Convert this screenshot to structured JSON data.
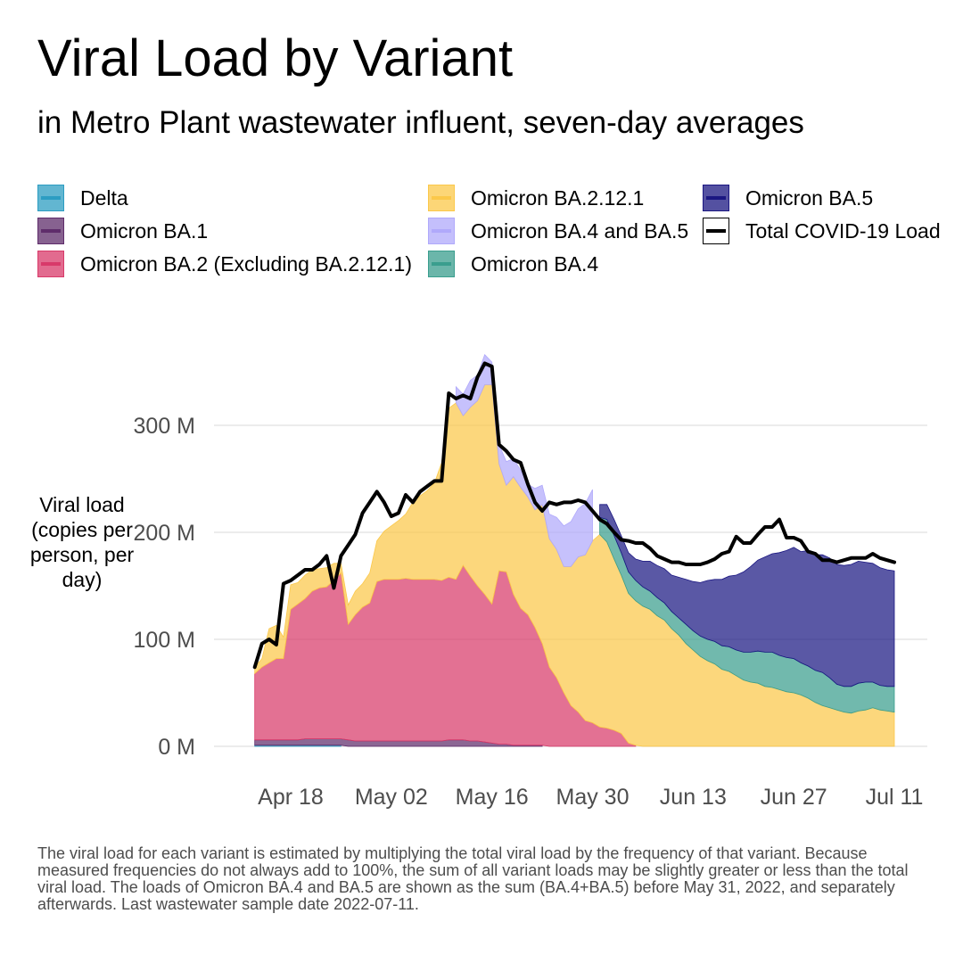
{
  "title": "Viral Load by Variant",
  "subtitle": "in Metro Plant wastewater influent, seven-day averages",
  "footnote": "The viral load for each variant is estimated by multiplying the total viral load by the frequency of that variant. Because measured frequencies do not always add to 100%, the sum of all variant loads may be slightly greater or less than the total viral load. The loads of Omicron BA.4 and BA.5 are shown as the sum (BA.4+BA.5) before May 31, 2022, and separately afterwards. Last wastewater sample date 2022-07-11.",
  "legend": [
    {
      "label": "Delta",
      "color": "#2d9dc2",
      "kind": "area"
    },
    {
      "label": "Omicron BA.1",
      "color": "#5f2d6b",
      "kind": "area"
    },
    {
      "label": "Omicron BA.2 (Excluding BA.2.12.1)",
      "color": "#d83a6a",
      "kind": "area"
    },
    {
      "label": "Omicron BA.2.12.1",
      "color": "#fbc84a",
      "kind": "area"
    },
    {
      "label": "Omicron BA.4 and BA.5",
      "color": "#b0a9fb",
      "kind": "area"
    },
    {
      "label": "Omicron BA.4",
      "color": "#3a9e8e",
      "kind": "area"
    },
    {
      "label": "Omicron BA.5",
      "color": "#1b1782",
      "kind": "area"
    },
    {
      "label": "Total COVID-19 Load",
      "color": "#000000",
      "kind": "line"
    }
  ],
  "chart_data": {
    "type": "area",
    "stacked": true,
    "title": "Viral Load by Variant",
    "subtitle": "in Metro Plant wastewater influent, seven-day averages",
    "ylabel": "Viral load (copies per person, per day)",
    "xlim": [
      "2022-04-13",
      "2022-07-13"
    ],
    "ylim": [
      0,
      360
    ],
    "y_unit": "M",
    "x_ticks": [
      {
        "date": "2022-04-18",
        "label": "Apr 18"
      },
      {
        "date": "2022-05-02",
        "label": "May 02"
      },
      {
        "date": "2022-05-16",
        "label": "May 16"
      },
      {
        "date": "2022-05-30",
        "label": "May 30"
      },
      {
        "date": "2022-06-13",
        "label": "Jun 13"
      },
      {
        "date": "2022-06-27",
        "label": "Jun 27"
      },
      {
        "date": "2022-07-11",
        "label": "Jul 11"
      }
    ],
    "y_ticks": [
      {
        "value": 0,
        "label": "0 M"
      },
      {
        "value": 100,
        "label": "100 M"
      },
      {
        "value": 200,
        "label": "200 M"
      },
      {
        "value": 300,
        "label": "300 M"
      }
    ],
    "grid": true,
    "legend_position": "top",
    "x": [
      "2022-04-13",
      "2022-04-14",
      "2022-04-15",
      "2022-04-16",
      "2022-04-17",
      "2022-04-18",
      "2022-04-19",
      "2022-04-20",
      "2022-04-21",
      "2022-04-22",
      "2022-04-23",
      "2022-04-24",
      "2022-04-25",
      "2022-04-26",
      "2022-04-27",
      "2022-04-28",
      "2022-04-29",
      "2022-04-30",
      "2022-05-01",
      "2022-05-02",
      "2022-05-03",
      "2022-05-04",
      "2022-05-05",
      "2022-05-06",
      "2022-05-07",
      "2022-05-08",
      "2022-05-09",
      "2022-05-10",
      "2022-05-11",
      "2022-05-12",
      "2022-05-13",
      "2022-05-14",
      "2022-05-15",
      "2022-05-16",
      "2022-05-17",
      "2022-05-18",
      "2022-05-19",
      "2022-05-20",
      "2022-05-21",
      "2022-05-22",
      "2022-05-23",
      "2022-05-24",
      "2022-05-25",
      "2022-05-26",
      "2022-05-27",
      "2022-05-28",
      "2022-05-29",
      "2022-05-30",
      "2022-05-31",
      "2022-06-01",
      "2022-06-02",
      "2022-06-03",
      "2022-06-04",
      "2022-06-05",
      "2022-06-06",
      "2022-06-07",
      "2022-06-08",
      "2022-06-09",
      "2022-06-10",
      "2022-06-11",
      "2022-06-12",
      "2022-06-13",
      "2022-06-14",
      "2022-06-15",
      "2022-06-16",
      "2022-06-17",
      "2022-06-18",
      "2022-06-19",
      "2022-06-20",
      "2022-06-21",
      "2022-06-22",
      "2022-06-23",
      "2022-06-24",
      "2022-06-25",
      "2022-06-26",
      "2022-06-27",
      "2022-06-28",
      "2022-06-29",
      "2022-06-30",
      "2022-07-01",
      "2022-07-02",
      "2022-07-03",
      "2022-07-04",
      "2022-07-05",
      "2022-07-06",
      "2022-07-07",
      "2022-07-08",
      "2022-07-09",
      "2022-07-10",
      "2022-07-11"
    ],
    "series": [
      {
        "name": "Delta",
        "color": "#2d9dc2",
        "values": [
          1,
          1,
          1,
          1,
          1,
          1,
          1,
          1,
          1,
          1,
          1,
          1,
          1,
          0,
          0,
          0,
          0,
          0,
          0,
          0,
          0,
          0,
          0,
          0,
          0,
          0,
          0,
          0,
          0,
          0,
          0,
          0,
          0,
          0,
          0,
          0,
          0,
          0,
          0,
          0,
          0,
          0,
          0,
          0,
          0,
          0,
          0,
          0,
          0,
          0,
          0,
          0,
          0,
          0,
          0,
          0,
          0,
          0,
          0,
          0,
          0,
          0,
          0,
          0,
          0,
          0,
          0,
          0,
          0,
          0,
          0,
          0,
          0,
          0,
          0,
          0,
          0,
          0,
          0,
          0,
          0,
          0,
          0,
          0,
          0,
          0,
          0,
          0,
          0,
          0
        ]
      },
      {
        "name": "Omicron BA.1",
        "color": "#5f2d6b",
        "values": [
          5,
          5,
          5,
          5,
          5,
          5,
          5,
          6,
          6,
          6,
          6,
          6,
          6,
          6,
          5,
          5,
          5,
          5,
          5,
          5,
          5,
          5,
          5,
          5,
          5,
          5,
          5,
          6,
          6,
          6,
          5,
          5,
          4,
          3,
          2,
          2,
          1,
          1,
          1,
          1,
          1,
          0,
          0,
          0,
          0,
          0,
          0,
          0,
          0,
          0,
          0,
          0,
          0,
          0,
          0,
          0,
          0,
          0,
          0,
          0,
          0,
          0,
          0,
          0,
          0,
          0,
          0,
          0,
          0,
          0,
          0,
          0,
          0,
          0,
          0,
          0,
          0,
          0,
          0,
          0,
          0,
          0,
          0,
          0,
          0,
          0,
          0,
          0,
          0,
          0
        ]
      },
      {
        "name": "Omicron BA.2 (Excluding BA.2.12.1)",
        "color": "#d83a6a",
        "values": [
          62,
          68,
          72,
          76,
          76,
          122,
          127,
          131,
          138,
          141,
          142,
          148,
          155,
          108,
          118,
          125,
          129,
          149,
          151,
          151,
          151,
          152,
          151,
          151,
          151,
          151,
          150,
          152,
          150,
          163,
          154,
          145,
          138,
          130,
          162,
          161,
          141,
          128,
          122,
          110,
          95,
          74,
          64,
          50,
          38,
          32,
          24,
          22,
          18,
          17,
          15,
          12,
          3,
          1,
          0,
          0,
          0,
          0,
          0,
          0,
          0,
          0,
          0,
          0,
          0,
          0,
          0,
          0,
          0,
          0,
          0,
          0,
          0,
          0,
          0,
          0,
          0,
          0,
          0,
          0,
          0,
          0,
          0,
          0,
          0,
          0,
          0,
          0,
          0,
          0
        ]
      },
      {
        "name": "Omicron BA.2.12.1",
        "color": "#fbc84a",
        "values": [
          6,
          8,
          32,
          31,
          20,
          23,
          20,
          22,
          20,
          18,
          18,
          16,
          9,
          18,
          22,
          22,
          28,
          38,
          45,
          50,
          55,
          60,
          72,
          78,
          83,
          90,
          110,
          158,
          165,
          140,
          158,
          173,
          196,
          205,
          100,
          81,
          110,
          113,
          110,
          110,
          130,
          120,
          120,
          118,
          130,
          145,
          155,
          170,
          180,
          174,
          160,
          148,
          140,
          135,
          131,
          128,
          122,
          118,
          110,
          104,
          96,
          90,
          84,
          80,
          77,
          72,
          70,
          66,
          62,
          60,
          59,
          56,
          55,
          53,
          51,
          50,
          48,
          45,
          41,
          38,
          36,
          34,
          32,
          31,
          33,
          34,
          36,
          34,
          33,
          32
        ]
      },
      {
        "name": "Omicron BA.4 and BA.5",
        "color": "#b0a9fb",
        "values": [
          0,
          0,
          0,
          0,
          0,
          0,
          0,
          0,
          0,
          0,
          0,
          0,
          0,
          0,
          0,
          0,
          0,
          0,
          0,
          0,
          0,
          0,
          0,
          0,
          0,
          0,
          0,
          0,
          15,
          20,
          25,
          24,
          28,
          21,
          18,
          22,
          17,
          16,
          12,
          20,
          18,
          23,
          30,
          38,
          42,
          45,
          48,
          48,
          0,
          0,
          0,
          0,
          0,
          0,
          0,
          0,
          0,
          0,
          0,
          0,
          0,
          0,
          0,
          0,
          0,
          0,
          0,
          0,
          0,
          0,
          0,
          0,
          0,
          0,
          0,
          0,
          0,
          0,
          0,
          0,
          0,
          0,
          0,
          0,
          0,
          0,
          0,
          0,
          0,
          0
        ]
      },
      {
        "name": "Omicron BA.4",
        "color": "#3a9e8e",
        "values": [
          0,
          0,
          0,
          0,
          0,
          0,
          0,
          0,
          0,
          0,
          0,
          0,
          0,
          0,
          0,
          0,
          0,
          0,
          0,
          0,
          0,
          0,
          0,
          0,
          0,
          0,
          0,
          0,
          0,
          0,
          0,
          0,
          0,
          0,
          0,
          0,
          0,
          0,
          0,
          0,
          0,
          0,
          0,
          0,
          0,
          0,
          0,
          0,
          16,
          21,
          22,
          21,
          20,
          19,
          18,
          17,
          17,
          16,
          16,
          16,
          18,
          18,
          19,
          20,
          21,
          22,
          23,
          24,
          26,
          28,
          30,
          32,
          33,
          32,
          32,
          32,
          30,
          30,
          30,
          31,
          28,
          24,
          24,
          25,
          26,
          26,
          24,
          23,
          23,
          24
        ]
      },
      {
        "name": "Omicron BA.5",
        "color": "#1b1782",
        "values": [
          0,
          0,
          0,
          0,
          0,
          0,
          0,
          0,
          0,
          0,
          0,
          0,
          0,
          0,
          0,
          0,
          0,
          0,
          0,
          0,
          0,
          0,
          0,
          0,
          0,
          0,
          0,
          0,
          0,
          0,
          0,
          0,
          0,
          0,
          0,
          0,
          0,
          0,
          0,
          0,
          0,
          0,
          0,
          0,
          0,
          0,
          0,
          0,
          12,
          14,
          15,
          16,
          18,
          20,
          24,
          28,
          30,
          32,
          34,
          38,
          42,
          46,
          50,
          55,
          58,
          62,
          66,
          70,
          75,
          80,
          85,
          89,
          92,
          96,
          100,
          104,
          104,
          108,
          108,
          110,
          112,
          112,
          113,
          114,
          114,
          112,
          111,
          110,
          109,
          108
        ]
      },
      {
        "name": "Total COVID-19 Load",
        "color": "#000000",
        "kind": "line",
        "values": [
          74,
          96,
          100,
          95,
          152,
          155,
          160,
          165,
          165,
          170,
          178,
          148,
          178,
          188,
          198,
          218,
          228,
          238,
          228,
          215,
          218,
          235,
          228,
          238,
          243,
          248,
          248,
          330,
          325,
          328,
          325,
          345,
          358,
          355,
          282,
          276,
          268,
          265,
          245,
          228,
          220,
          228,
          226,
          228,
          228,
          230,
          228,
          220,
          212,
          208,
          200,
          193,
          192,
          190,
          190,
          185,
          178,
          175,
          172,
          172,
          170,
          170,
          170,
          172,
          175,
          180,
          182,
          196,
          190,
          190,
          198,
          205,
          205,
          212,
          195,
          195,
          192,
          182,
          180,
          174,
          174,
          172,
          174,
          176,
          176,
          176,
          180,
          176,
          174,
          172
        ]
      }
    ]
  }
}
